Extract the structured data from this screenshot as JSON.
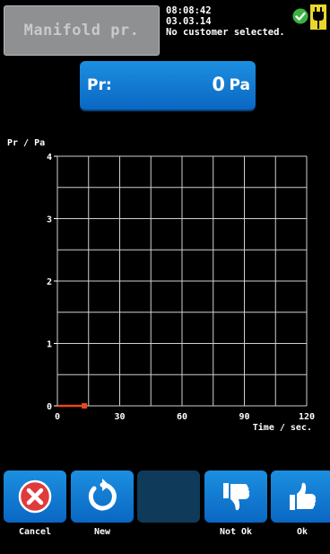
{
  "header": {
    "mode_label": "Manifold pr.",
    "time": "08:08:42",
    "date": "03.03.14",
    "customer_status": "No customer selected."
  },
  "reading": {
    "label": "Pr:",
    "value": "0",
    "unit": "Pa"
  },
  "chart_data": {
    "type": "line",
    "ylabel": "Pr / Pa",
    "xlabel": "Time / sec.",
    "xlim": [
      0,
      120
    ],
    "ylim": [
      0,
      4
    ],
    "x_ticks": [
      0,
      30,
      60,
      90,
      120
    ],
    "y_ticks": [
      0,
      1,
      2,
      3,
      4
    ],
    "grid": true,
    "series": [
      {
        "color": "#e8471c",
        "x": [
          0,
          13
        ],
        "y": [
          0,
          0
        ]
      }
    ]
  },
  "buttons": {
    "cancel": "Cancel",
    "new": "New",
    "not_ok": "Not Ok",
    "ok": "Ok"
  },
  "icons": {
    "status": "check-circle-icon",
    "power": "plug-icon"
  },
  "colors": {
    "button_blue": "#0a67c3",
    "cancel_red": "#e03a3a",
    "ok_green": "#3cb043",
    "series_orange": "#e8471c"
  }
}
